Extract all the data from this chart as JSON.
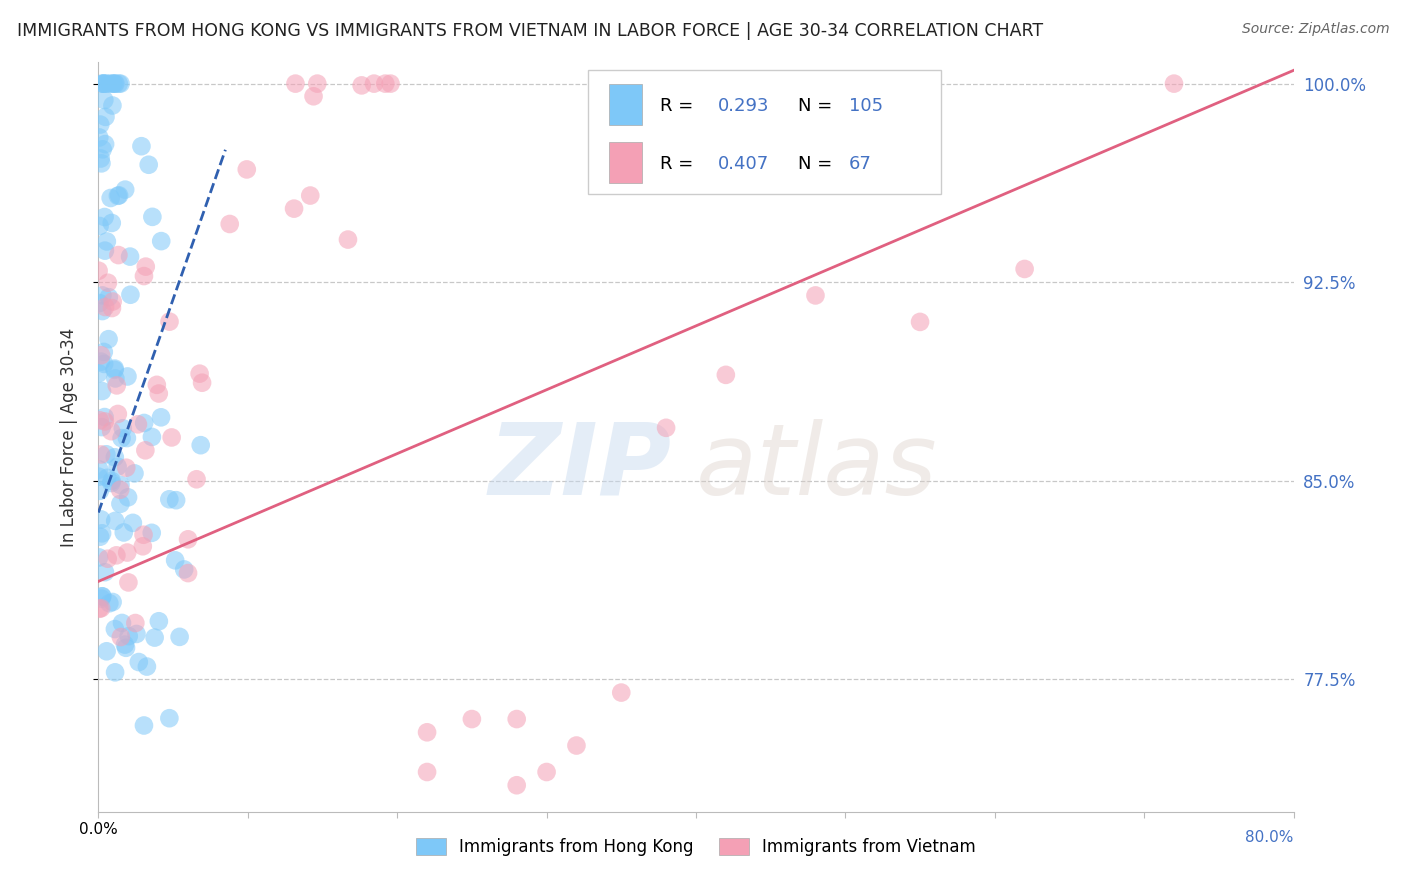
{
  "title": "IMMIGRANTS FROM HONG KONG VS IMMIGRANTS FROM VIETNAM IN LABOR FORCE | AGE 30-34 CORRELATION CHART",
  "source": "Source: ZipAtlas.com",
  "ylabel": "In Labor Force | Age 30-34",
  "xmin": 0.0,
  "xmax": 0.8,
  "ymin": 0.725,
  "ymax": 1.008,
  "hk_R": 0.293,
  "hk_N": 105,
  "vn_R": 0.407,
  "vn_N": 67,
  "hk_color": "#7EC8F8",
  "vn_color": "#F4A0B5",
  "hk_line_color": "#3060B0",
  "vn_line_color": "#E06080",
  "legend_label_hk": "Immigrants from Hong Kong",
  "legend_label_vn": "Immigrants from Vietnam",
  "ytick_vals": [
    0.775,
    0.85,
    0.925,
    1.0
  ],
  "ytick_labels": [
    "77.5%",
    "85.0%",
    "92.5%",
    "100.0%"
  ],
  "background_color": "#FFFFFF",
  "grid_color": "#BBBBBB",
  "title_color": "#222222",
  "tick_color": "#4472C4",
  "axis_color": "#BBBBBB",
  "hk_trend_x0": 0.0,
  "hk_trend_y0": 0.838,
  "hk_trend_x1": 0.085,
  "hk_trend_y1": 0.975,
  "vn_trend_x0": 0.0,
  "vn_trend_y0": 0.812,
  "vn_trend_x1": 0.8,
  "vn_trend_y1": 1.005
}
